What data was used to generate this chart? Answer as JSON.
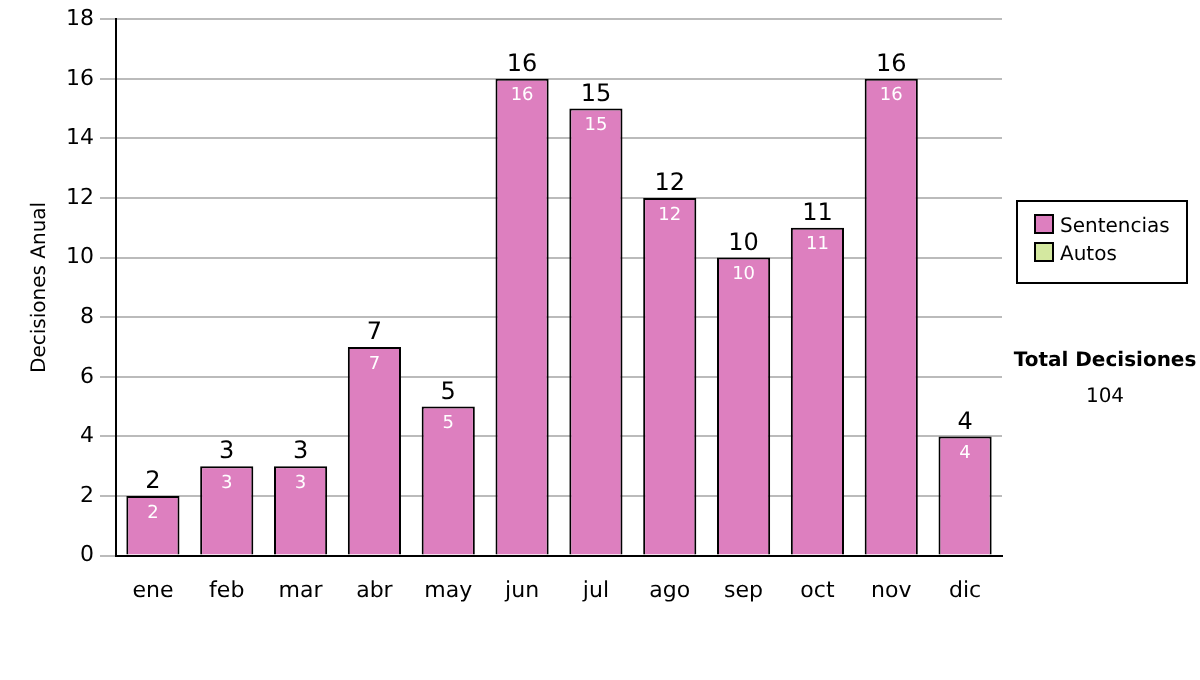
{
  "chart_data": {
    "type": "bar",
    "ylabel": "Decisiones Anual",
    "categories": [
      "ene",
      "feb",
      "mar",
      "abr",
      "may",
      "jun",
      "jul",
      "ago",
      "sep",
      "oct",
      "nov",
      "dic"
    ],
    "stacked": true,
    "series": [
      {
        "name": "Sentencias",
        "color": "#dd7fbf",
        "values": [
          2,
          3,
          3,
          7,
          5,
          16,
          15,
          12,
          10,
          11,
          16,
          4
        ],
        "value_labels": [
          "2",
          "3",
          "3",
          "7",
          "5",
          "16",
          "15",
          "12",
          "10",
          "11",
          "16",
          "4"
        ]
      },
      {
        "name": "Autos",
        "color": "#d4e8a0",
        "values": [
          null,
          null,
          null,
          null,
          null,
          null,
          null,
          null,
          null,
          null,
          null,
          null
        ]
      }
    ],
    "totals": [
      "2",
      "3",
      "3",
      "7",
      "5",
      "16",
      "15",
      "12",
      "10",
      "11",
      "16",
      "4"
    ],
    "ylim": [
      0,
      18
    ],
    "yticks": [
      0,
      2,
      4,
      6,
      8,
      10,
      12,
      14,
      16,
      18
    ],
    "grid": "y",
    "legend": "right",
    "annotations": [
      "Total Decisiones",
      "104"
    ]
  }
}
